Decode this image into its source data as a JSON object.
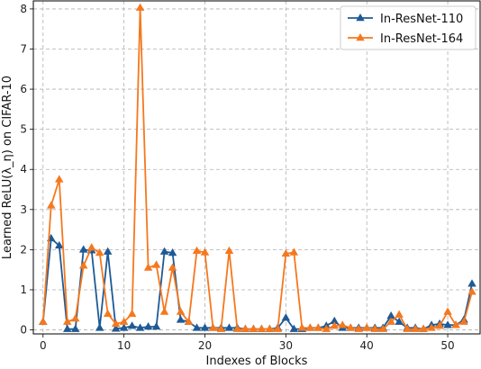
{
  "chart_data": {
    "type": "line",
    "xlabel": "Indexes of Blocks",
    "ylabel": "Learned ReLU(λ_η) on CIFAR-10",
    "xlim": [
      -1.2,
      54
    ],
    "ylim": [
      -0.1,
      8.2
    ],
    "x_ticks": [
      0,
      10,
      20,
      30,
      40,
      50
    ],
    "y_ticks": [
      0,
      1,
      2,
      3,
      4,
      5,
      6,
      7,
      8
    ],
    "x_tick_labels": [
      "0",
      "10",
      "20",
      "30",
      "40",
      "50"
    ],
    "y_tick_labels": [
      "0",
      "1",
      "2",
      "3",
      "4",
      "5",
      "6",
      "7",
      "8"
    ],
    "grid": true,
    "legend_position": "top-right",
    "x": [
      0,
      1,
      2,
      3,
      4,
      5,
      6,
      7,
      8,
      9,
      10,
      11,
      12,
      13,
      14,
      15,
      16,
      17,
      18,
      19,
      20,
      21,
      22,
      23,
      24,
      25,
      26,
      27,
      28,
      29,
      30,
      31,
      32,
      33,
      34,
      35,
      36,
      37,
      38,
      39,
      40,
      41,
      42,
      43,
      44,
      45,
      46,
      47,
      48,
      49,
      50,
      51,
      52,
      53
    ],
    "series": [
      {
        "name": "In-ResNet-110",
        "color": "#1f5a96",
        "marker": "triangle",
        "values": [
          0.2,
          2.28,
          2.1,
          0.02,
          0.02,
          2.0,
          1.98,
          0.05,
          1.95,
          0.03,
          0.05,
          0.1,
          0.05,
          0.08,
          0.08,
          1.95,
          1.92,
          0.25,
          0.2,
          0.05,
          0.05,
          0.05,
          0.05,
          0.05,
          0.05,
          0.02,
          0.02,
          0.02,
          0.02,
          0.05,
          0.3,
          0.02,
          0.02,
          0.05,
          0.05,
          0.1,
          0.22,
          0.05,
          0.05,
          0.05,
          0.05,
          0.05,
          0.05,
          0.35,
          0.2,
          0.05,
          0.05,
          0.02,
          0.12,
          0.15,
          0.12,
          0.12,
          0.25,
          1.15
        ]
      },
      {
        "name": "In-ResNet-164",
        "color": "#f5781e",
        "marker": "triangle",
        "values": [
          0.2,
          3.1,
          3.75,
          0.2,
          0.28,
          1.6,
          2.05,
          1.92,
          0.4,
          0.15,
          0.2,
          0.4,
          8.03,
          1.55,
          1.62,
          0.45,
          1.55,
          0.45,
          0.2,
          1.97,
          1.93,
          0.05,
          0.02,
          1.97,
          0.02,
          0.02,
          0.02,
          0.02,
          0.02,
          0.02,
          1.9,
          1.93,
          0.05,
          0.05,
          0.05,
          0.02,
          0.1,
          0.12,
          0.05,
          0.02,
          0.05,
          0.02,
          0.02,
          0.2,
          0.38,
          0.02,
          0.02,
          0.02,
          0.05,
          0.1,
          0.45,
          0.12,
          0.2,
          0.95
        ]
      }
    ]
  }
}
